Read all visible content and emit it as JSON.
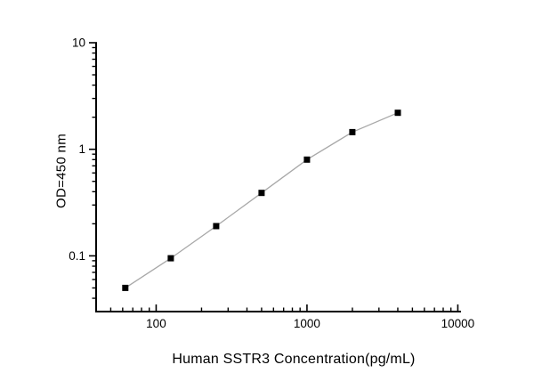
{
  "chart_data": {
    "type": "scatter",
    "subtype": "scatter-with-line",
    "title": "",
    "xlabel": "Human SSTR3 Concentration(pg/mL)",
    "ylabel": "OD=450 nm",
    "x_scale": "log",
    "y_scale": "log",
    "xlim": [
      40,
      10500
    ],
    "ylim": [
      0.03,
      10
    ],
    "x_ticks": [
      100,
      1000,
      10000
    ],
    "x_tick_labels": [
      "100",
      "1000",
      "10000"
    ],
    "y_ticks": [
      0.1,
      1,
      10
    ],
    "y_tick_labels": [
      "0.1",
      "1",
      "10"
    ],
    "grid": "off",
    "legend": "none",
    "points": [
      {
        "x": 62.5,
        "y": 0.05
      },
      {
        "x": 125,
        "y": 0.095
      },
      {
        "x": 250,
        "y": 0.19
      },
      {
        "x": 500,
        "y": 0.39
      },
      {
        "x": 1000,
        "y": 0.8
      },
      {
        "x": 2000,
        "y": 1.45
      },
      {
        "x": 4000,
        "y": 2.2
      }
    ],
    "marker": "filled-square",
    "marker_color": "#000000",
    "line_color": "#a8a8a8",
    "axis_color": "#000000",
    "tick_label_color": "#000000",
    "background_color": "#ffffff"
  }
}
